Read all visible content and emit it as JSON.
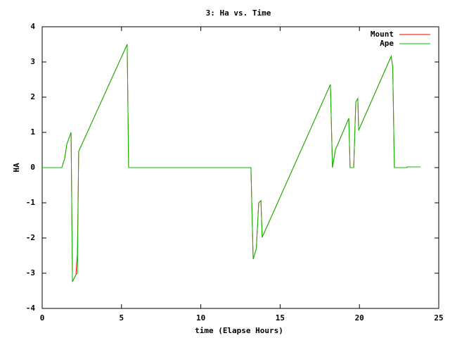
{
  "chart_data": {
    "type": "line",
    "title": "3: Ha vs. Time",
    "xlabel": "time (Elapse Hours)",
    "ylabel": "HA",
    "xlim": [
      0,
      25
    ],
    "ylim": [
      -4,
      4
    ],
    "xticks": [
      0,
      5,
      10,
      15,
      20,
      25
    ],
    "yticks": [
      -4,
      -3,
      -2,
      -1,
      0,
      1,
      2,
      3,
      4
    ],
    "grid": false,
    "legend": "top-right",
    "series": [
      {
        "name": "Mount",
        "color": "#ff0000",
        "x": [
          0,
          1.24,
          1.42,
          1.55,
          1.82,
          1.91,
          2.13,
          2.22,
          2.26,
          2.3,
          5.36,
          5.45,
          13.16,
          13.3,
          13.5,
          13.65,
          13.79,
          13.87,
          18.17,
          18.3,
          18.48,
          19.33,
          19.41,
          19.64,
          19.77,
          19.9,
          19.95,
          22.0,
          22.1,
          22.2,
          22.96,
          23.05,
          23.85
        ],
        "values": [
          0,
          0,
          0.26,
          0.66,
          1.0,
          -3.24,
          -3.04,
          -2.44,
          -1.0,
          0.46,
          3.5,
          0,
          0,
          -2.6,
          -2.3,
          -1.0,
          -0.94,
          -1.98,
          2.36,
          0,
          0.5,
          1.4,
          0,
          0,
          1.86,
          1.96,
          1.06,
          3.16,
          2.86,
          0,
          0,
          0.02,
          0.02
        ]
      },
      {
        "name": "Ape",
        "color": "#00c000",
        "x": [
          0,
          1.24,
          1.42,
          1.55,
          1.82,
          1.91,
          2.13,
          2.22,
          2.3,
          5.36,
          5.45,
          13.16,
          13.3,
          13.5,
          13.65,
          13.79,
          13.87,
          18.17,
          18.3,
          18.48,
          19.33,
          19.41,
          19.64,
          19.77,
          19.9,
          19.95,
          22.0,
          22.1,
          22.2,
          22.96,
          23.05,
          23.85
        ],
        "values": [
          0,
          0,
          0.26,
          0.66,
          1.0,
          -3.24,
          -3.04,
          -3.0,
          0.46,
          3.5,
          0,
          0,
          -2.6,
          -2.3,
          -1.0,
          -0.94,
          -1.98,
          2.36,
          0,
          0.5,
          1.4,
          0,
          0,
          1.86,
          1.96,
          1.06,
          3.16,
          2.86,
          0,
          0,
          0.02,
          0.02
        ]
      }
    ]
  }
}
